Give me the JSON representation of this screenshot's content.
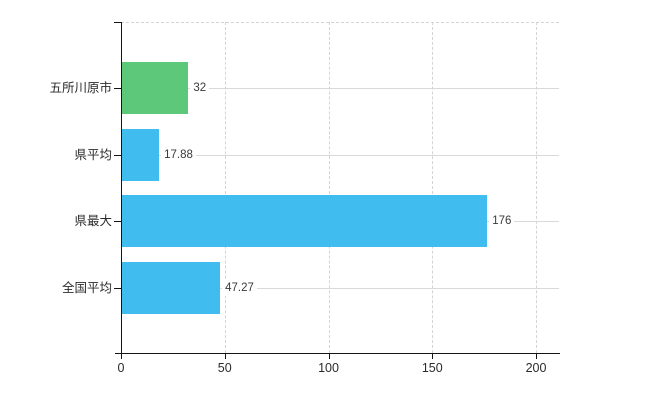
{
  "chart_data": {
    "type": "bar",
    "orientation": "horizontal",
    "title": "",
    "categories": [
      "五所川原市",
      "県平均",
      "県最大",
      "全国平均"
    ],
    "values": [
      32,
      17.88,
      176,
      47.27
    ],
    "value_labels": [
      "32",
      "17.88",
      "176",
      "47.27"
    ],
    "bar_colors": [
      "#5dc87a",
      "#40bcef",
      "#40bcef",
      "#40bcef"
    ],
    "bar_textures": [
      "dots",
      "none",
      "none",
      "none"
    ],
    "xlim": [
      0,
      200
    ],
    "x_ticks": [
      0,
      50,
      100,
      150,
      200
    ],
    "x_tick_labels": [
      "0",
      "50",
      "100",
      "150",
      "200"
    ],
    "grid": true,
    "legend_position": "none",
    "background_color": "#ffffff",
    "axis_color": "#151515",
    "gridline_color_horizontal": "#d7dbd7",
    "gridline_color_vertical": "#d4d4d4"
  }
}
